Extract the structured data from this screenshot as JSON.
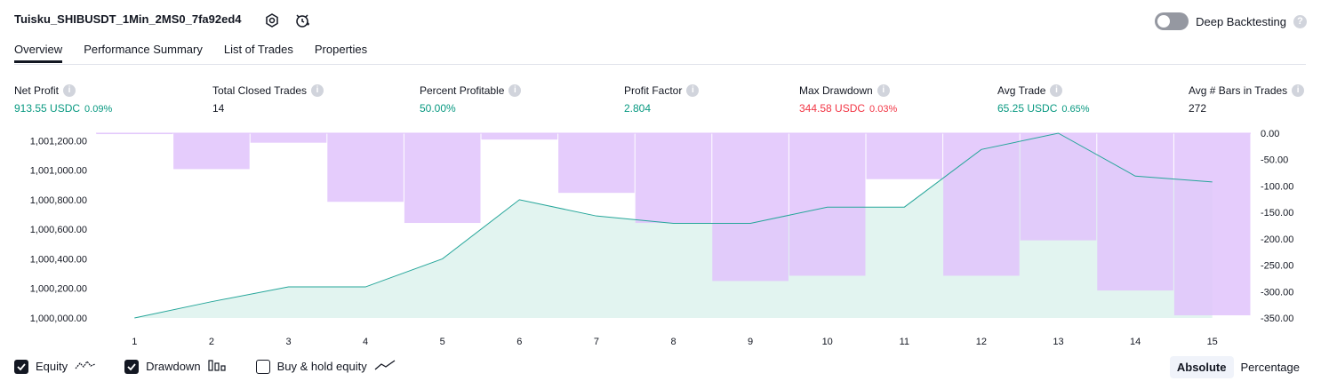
{
  "header": {
    "title": "Tuisku_SHIBUSDT_1Min_2MS0_7fa92ed4",
    "deep_backtesting_label": "Deep Backtesting",
    "help_mark": "?"
  },
  "tabs": [
    {
      "label": "Overview"
    },
    {
      "label": "Performance Summary"
    },
    {
      "label": "List of Trades"
    },
    {
      "label": "Properties"
    }
  ],
  "metrics": [
    {
      "label": "Net Profit",
      "value": "913.55 USDC",
      "sub": "0.09%",
      "color": "#089981"
    },
    {
      "label": "Total Closed Trades",
      "value": "14",
      "sub": "",
      "color": "#131722"
    },
    {
      "label": "Percent Profitable",
      "value": "50.00%",
      "sub": "",
      "color": "#089981"
    },
    {
      "label": "Profit Factor",
      "value": "2.804",
      "sub": "",
      "color": "#089981"
    },
    {
      "label": "Max Drawdown",
      "value": "344.58 USDC",
      "sub": "0.03%",
      "color": "#f23645"
    },
    {
      "label": "Avg Trade",
      "value": "65.25 USDC",
      "sub": "0.65%",
      "color": "#089981"
    },
    {
      "label": "Avg # Bars in Trades",
      "value": "272",
      "sub": "",
      "color": "#131722"
    }
  ],
  "chart_data": {
    "type": "line",
    "x": [
      1,
      2,
      3,
      4,
      5,
      6,
      7,
      8,
      9,
      10,
      11,
      12,
      13,
      14,
      15
    ],
    "equity_series": {
      "values": [
        1000000,
        1000110,
        1000210,
        1000210,
        1000400,
        1000800,
        1000690,
        1000640,
        1000640,
        1000750,
        1000750,
        1001140,
        1001250,
        1000960,
        1000920
      ]
    },
    "drawdown_series": {
      "values": [
        0,
        -68,
        -18,
        -130,
        -170,
        -12,
        -113,
        -170,
        -280,
        -270,
        -87,
        -270,
        -203,
        -298,
        -345
      ]
    },
    "y_left_ticks": [
      "1,000,000.00",
      "1,000,200.00",
      "1,000,400.00",
      "1,000,600.00",
      "1,000,800.00",
      "1,001,000.00",
      "1,001,200.00"
    ],
    "y_left_range": [
      1000000,
      1001250
    ],
    "y_right_ticks": [
      "0.00",
      "-50.00",
      "-100.00",
      "-150.00",
      "-200.00",
      "-250.00",
      "-300.00",
      "-350.00"
    ],
    "y_right_range": [
      -350,
      0
    ],
    "colors": {
      "equity_line": "#26a69a",
      "equity_fill": "#dff3ee",
      "drawdown_bar": "#e1c3fc"
    }
  },
  "legend": {
    "equity_label": "Equity",
    "drawdown_label": "Drawdown",
    "buy_hold_label": "Buy & hold equity",
    "equity_checked": true,
    "drawdown_checked": true,
    "buy_hold_checked": false
  },
  "mode": {
    "absolute_label": "Absolute",
    "percentage_label": "Percentage",
    "selected": "Absolute"
  }
}
